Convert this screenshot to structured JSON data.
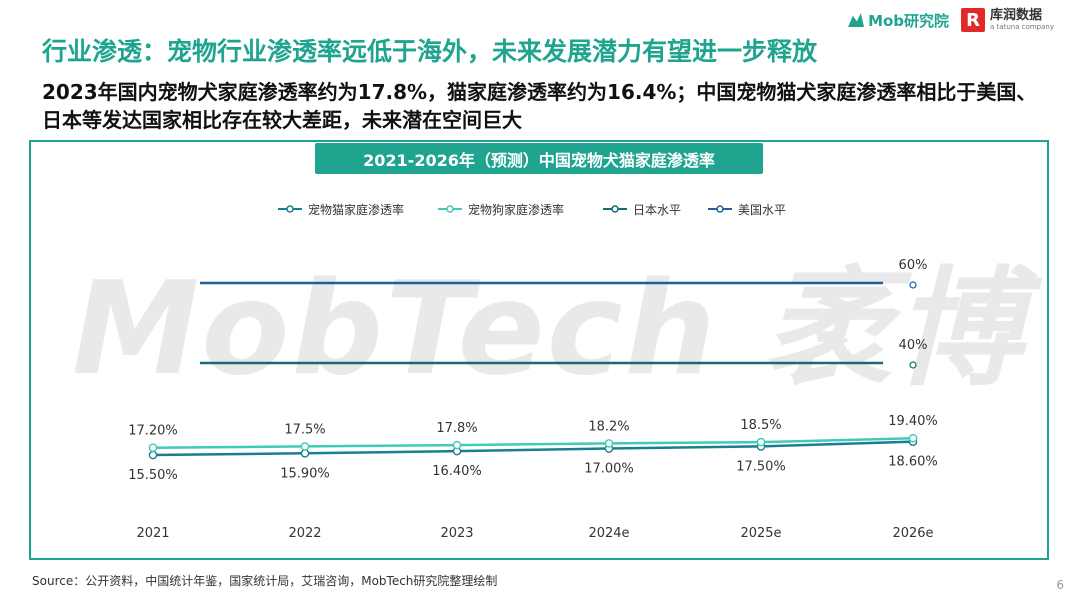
{
  "header": {
    "brand1": "Mob研究院",
    "brand2_cn": "库润数据",
    "brand2_en": "a tatuna company",
    "title": "行业渗透：宠物行业渗透率远低于海外，未来发展潜力有望进一步释放",
    "subtitle": "2023年国内宠物犬家庭渗透率约为17.8%，猫家庭渗透率约为16.4%；中国宠物猫犬家庭渗透率相比于美国、日本等发达国家相比存在较大差距，未来潜在空间巨大"
  },
  "watermark": "MobTech 袤博",
  "footer": {
    "source": "Source：公开资料，中国统计年鉴，国家统计局，艾瑞咨询，MobTech研究院整理绘制",
    "page": "6"
  },
  "colors": {
    "accent": "#1fa58f",
    "cat": "#1b7e8f",
    "dog": "#3fcbb4",
    "japan": "#156b78",
    "usa": "#1f5f9e"
  },
  "chart_data": {
    "type": "line",
    "title": "2021-2026年（预测）中国宠物犬猫家庭渗透率",
    "categories": [
      "2021",
      "2022",
      "2023",
      "2024e",
      "2025e",
      "2026e"
    ],
    "legend_position": "top",
    "series": [
      {
        "name": "宠物猫家庭渗透率",
        "values": [
          15.5,
          15.9,
          16.4,
          17.0,
          17.5,
          18.6
        ],
        "labels": [
          "15.50%",
          "15.90%",
          "16.40%",
          "17.00%",
          "17.50%",
          "18.60%"
        ]
      },
      {
        "name": "宠物狗家庭渗透率",
        "values": [
          17.2,
          17.5,
          17.8,
          18.2,
          18.5,
          19.4
        ],
        "labels": [
          "17.20%",
          "17.5%",
          "17.8%",
          "18.2%",
          "18.5%",
          "19.40%"
        ]
      },
      {
        "name": "日本水平",
        "value": 40,
        "label": "40%"
      },
      {
        "name": "美国水平",
        "value": 60,
        "label": "60%"
      }
    ]
  }
}
